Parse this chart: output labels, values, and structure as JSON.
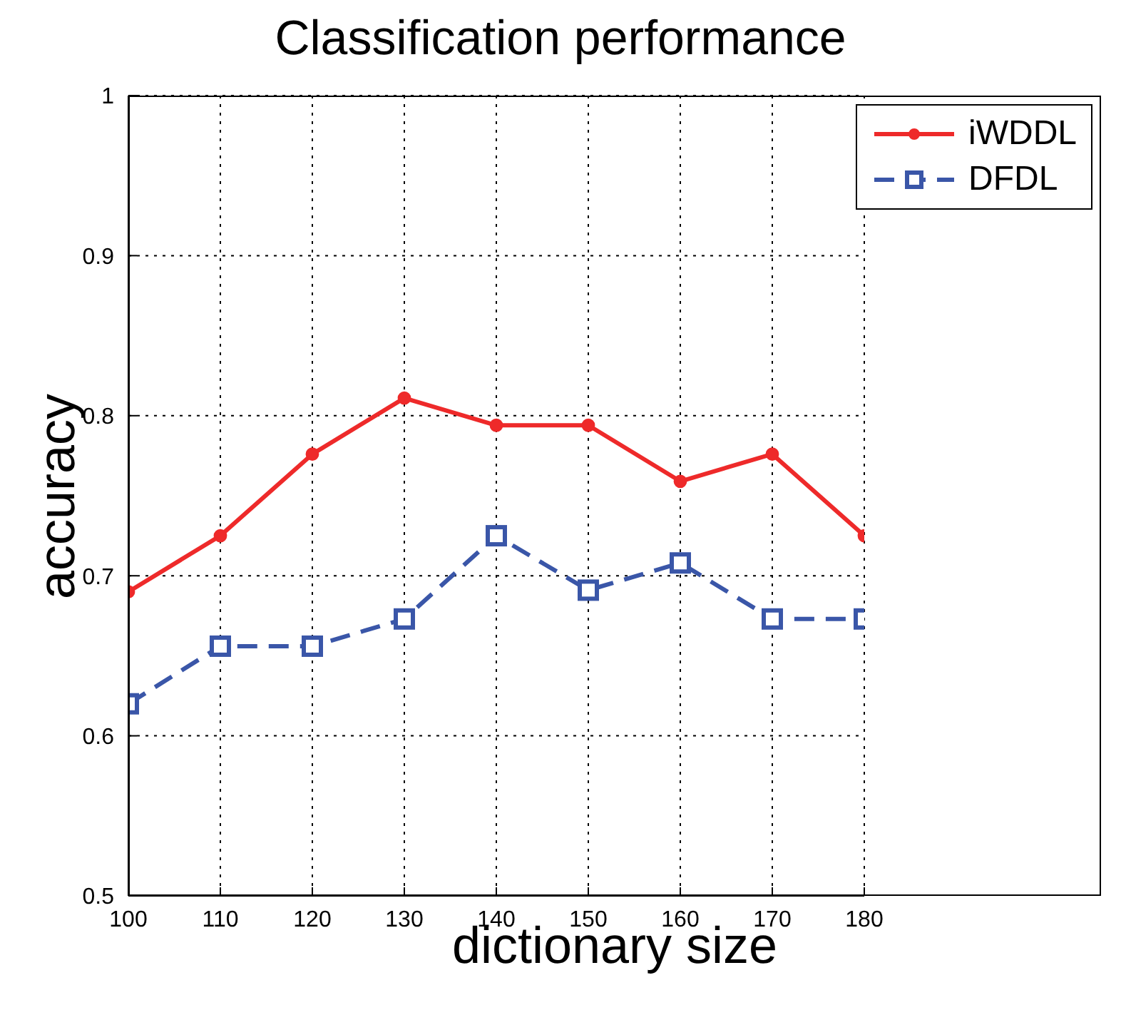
{
  "chart_data": {
    "type": "line",
    "title": "Classification performance",
    "xlabel": "dictionary size",
    "ylabel": "accuracy",
    "x": [
      100,
      110,
      120,
      130,
      140,
      150,
      160,
      170,
      180
    ],
    "series": [
      {
        "name": "iWDDL",
        "color": "#ee2a2a",
        "marker": "circle",
        "line_style": "solid",
        "values": [
          0.69,
          0.725,
          0.776,
          0.811,
          0.794,
          0.794,
          0.759,
          0.776,
          0.725
        ]
      },
      {
        "name": "DFDL",
        "color": "#3a56a8",
        "marker": "square",
        "line_style": "dashed",
        "values": [
          0.62,
          0.656,
          0.656,
          0.673,
          0.725,
          0.691,
          0.708,
          0.673,
          0.673
        ]
      }
    ],
    "xlim": [
      100,
      180
    ],
    "xticks": [
      100,
      110,
      120,
      130,
      140,
      150,
      160,
      170,
      180
    ],
    "ylim": [
      0.5,
      1
    ],
    "yticks": [
      0.5,
      0.6,
      0.7,
      0.8,
      0.9,
      1
    ],
    "grid": true,
    "legend": "top right"
  }
}
